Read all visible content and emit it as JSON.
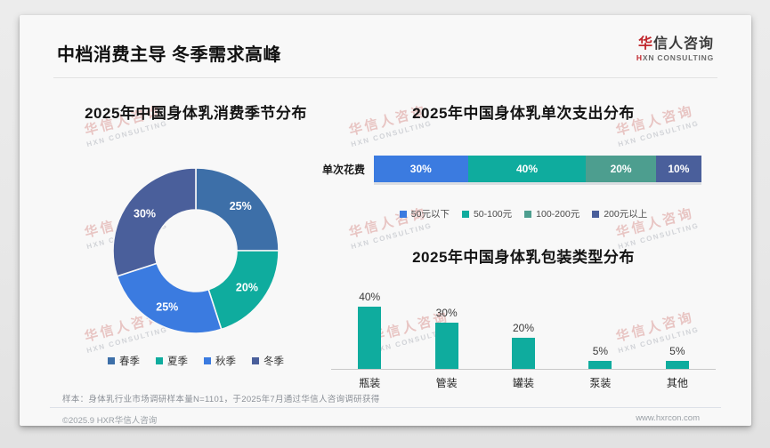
{
  "page": {
    "title": "中档消费主导 冬季需求高峰",
    "logo": {
      "cn_red": "华",
      "cn_rest": "信人咨询",
      "en_red": "H",
      "en_rest": "XN CONSULTING"
    },
    "watermark": {
      "cn": "华信人咨询",
      "en": "HXN CONSULTING"
    },
    "footer_note": "样本：身体乳行业市场调研样本量N=1101，于2025年7月通过华信人咨询调研获得",
    "copyright": "©2025.9 HXR华信人咨询",
    "website": "www.hxrcon.com"
  },
  "chart_data": [
    {
      "type": "pie",
      "subtype": "donut",
      "title": "2025年中国身体乳消费季节分布",
      "categories": [
        "春季",
        "夏季",
        "秋季",
        "冬季"
      ],
      "values": [
        25,
        20,
        25,
        30
      ],
      "labels": [
        "25%",
        "20%",
        "25%",
        "30%"
      ],
      "colors": [
        "#3D6FA8",
        "#0FAC9E",
        "#3B7BE0",
        "#4A5F9B"
      ],
      "start_angle_deg": 0,
      "direction": "clockwise",
      "legend_position": "bottom"
    },
    {
      "type": "bar",
      "subtype": "horizontal-stacked",
      "title": "2025年中国身体乳单次支出分布",
      "row_label": "单次花费",
      "series": [
        {
          "name": "50元以下",
          "value": 30,
          "label": "30%",
          "color": "#3B7BE0"
        },
        {
          "name": "50-100元",
          "value": 40,
          "label": "40%",
          "color": "#0FAC9E"
        },
        {
          "name": "100-200元",
          "value": 20,
          "label": "20%",
          "color": "#4D9E8F"
        },
        {
          "name": "200元以上",
          "value": 10,
          "label": "10%",
          "color": "#4A5F9B"
        }
      ],
      "legend_position": "bottom"
    },
    {
      "type": "bar",
      "subtype": "vertical",
      "title": "2025年中国身体乳包装类型分布",
      "categories": [
        "瓶装",
        "管装",
        "罐装",
        "泵装",
        "其他"
      ],
      "values": [
        40,
        30,
        20,
        5,
        5
      ],
      "labels": [
        "40%",
        "30%",
        "20%",
        "5%",
        "5%"
      ],
      "bar_color": "#0FAC9E",
      "ylim": [
        0,
        40
      ],
      "grid": false
    }
  ]
}
